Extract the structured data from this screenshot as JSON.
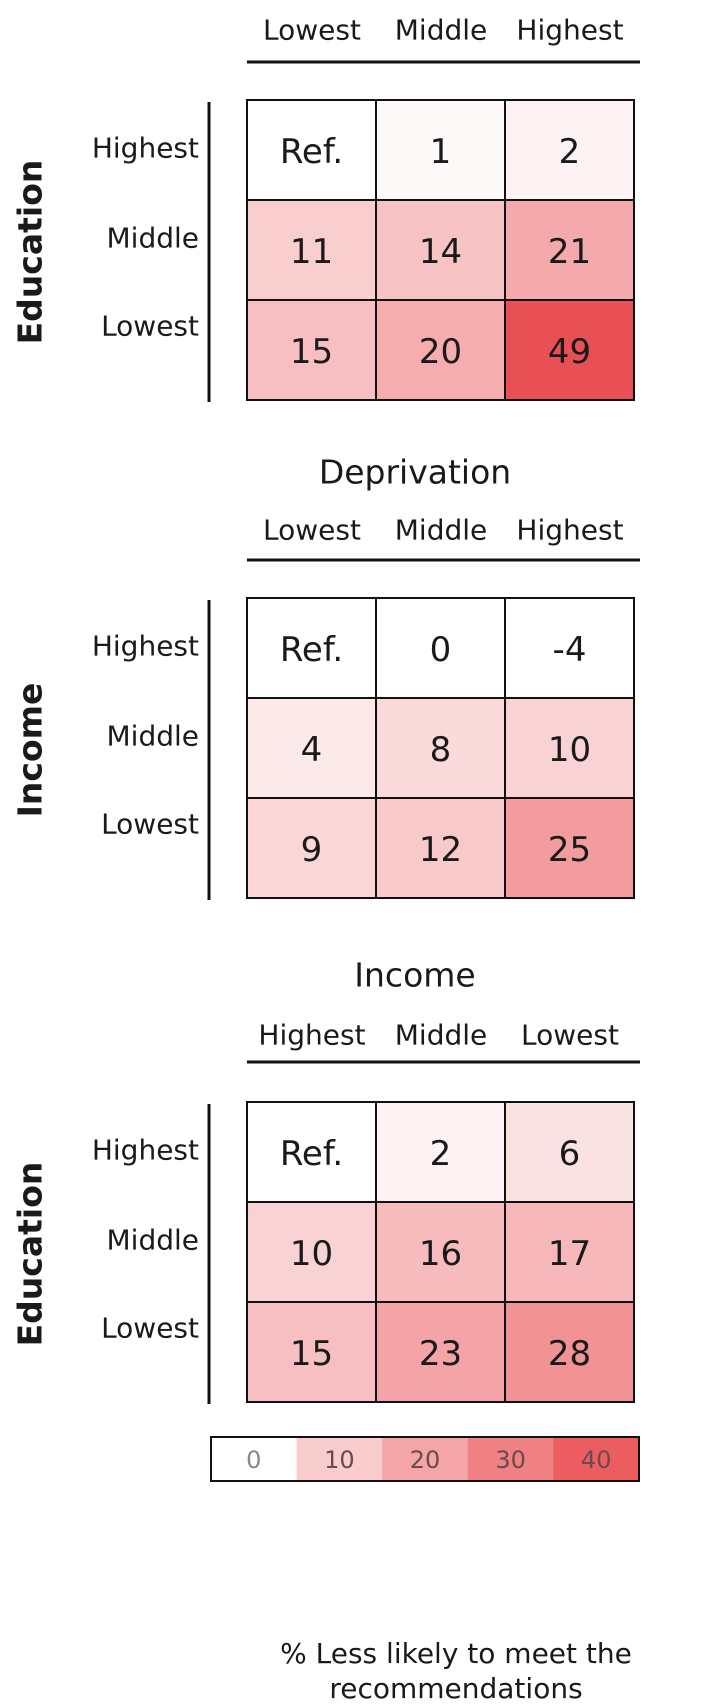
{
  "chart_data": [
    {
      "type": "heatmap",
      "title": "",
      "xlabel": "",
      "ylabel": "Education",
      "x_categories": [
        "Lowest",
        "Middle",
        "Highest"
      ],
      "y_categories": [
        "Highest",
        "Middle",
        "Lowest"
      ],
      "values": [
        [
          "Ref.",
          "1",
          "2"
        ],
        [
          "11",
          "14",
          "21"
        ],
        [
          "15",
          "20",
          "49"
        ]
      ]
    },
    {
      "type": "heatmap",
      "title": "",
      "xlabel": "Deprivation",
      "ylabel": "Income",
      "x_categories": [
        "Lowest",
        "Middle",
        "Highest"
      ],
      "y_categories": [
        "Highest",
        "Middle",
        "Lowest"
      ],
      "values": [
        [
          "Ref.",
          "0",
          "-4"
        ],
        [
          "4",
          "8",
          "10"
        ],
        [
          "9",
          "12",
          "25"
        ]
      ]
    },
    {
      "type": "heatmap",
      "title": "",
      "xlabel": "Income",
      "ylabel": "Education",
      "x_categories": [
        "Highest",
        "Middle",
        "Lowest"
      ],
      "y_categories": [
        "Highest",
        "Middle",
        "Lowest"
      ],
      "values": [
        [
          "Ref.",
          "2",
          "6"
        ],
        [
          "10",
          "16",
          "17"
        ],
        [
          "15",
          "23",
          "28"
        ]
      ]
    }
  ],
  "legend": {
    "values": [
      "0",
      "10",
      "20",
      "30",
      "40"
    ],
    "caption": "% Less likely to meet the recommendations"
  },
  "colors": {
    "low": "#ffffff",
    "high": "#e8474c",
    "border": "#111111"
  }
}
